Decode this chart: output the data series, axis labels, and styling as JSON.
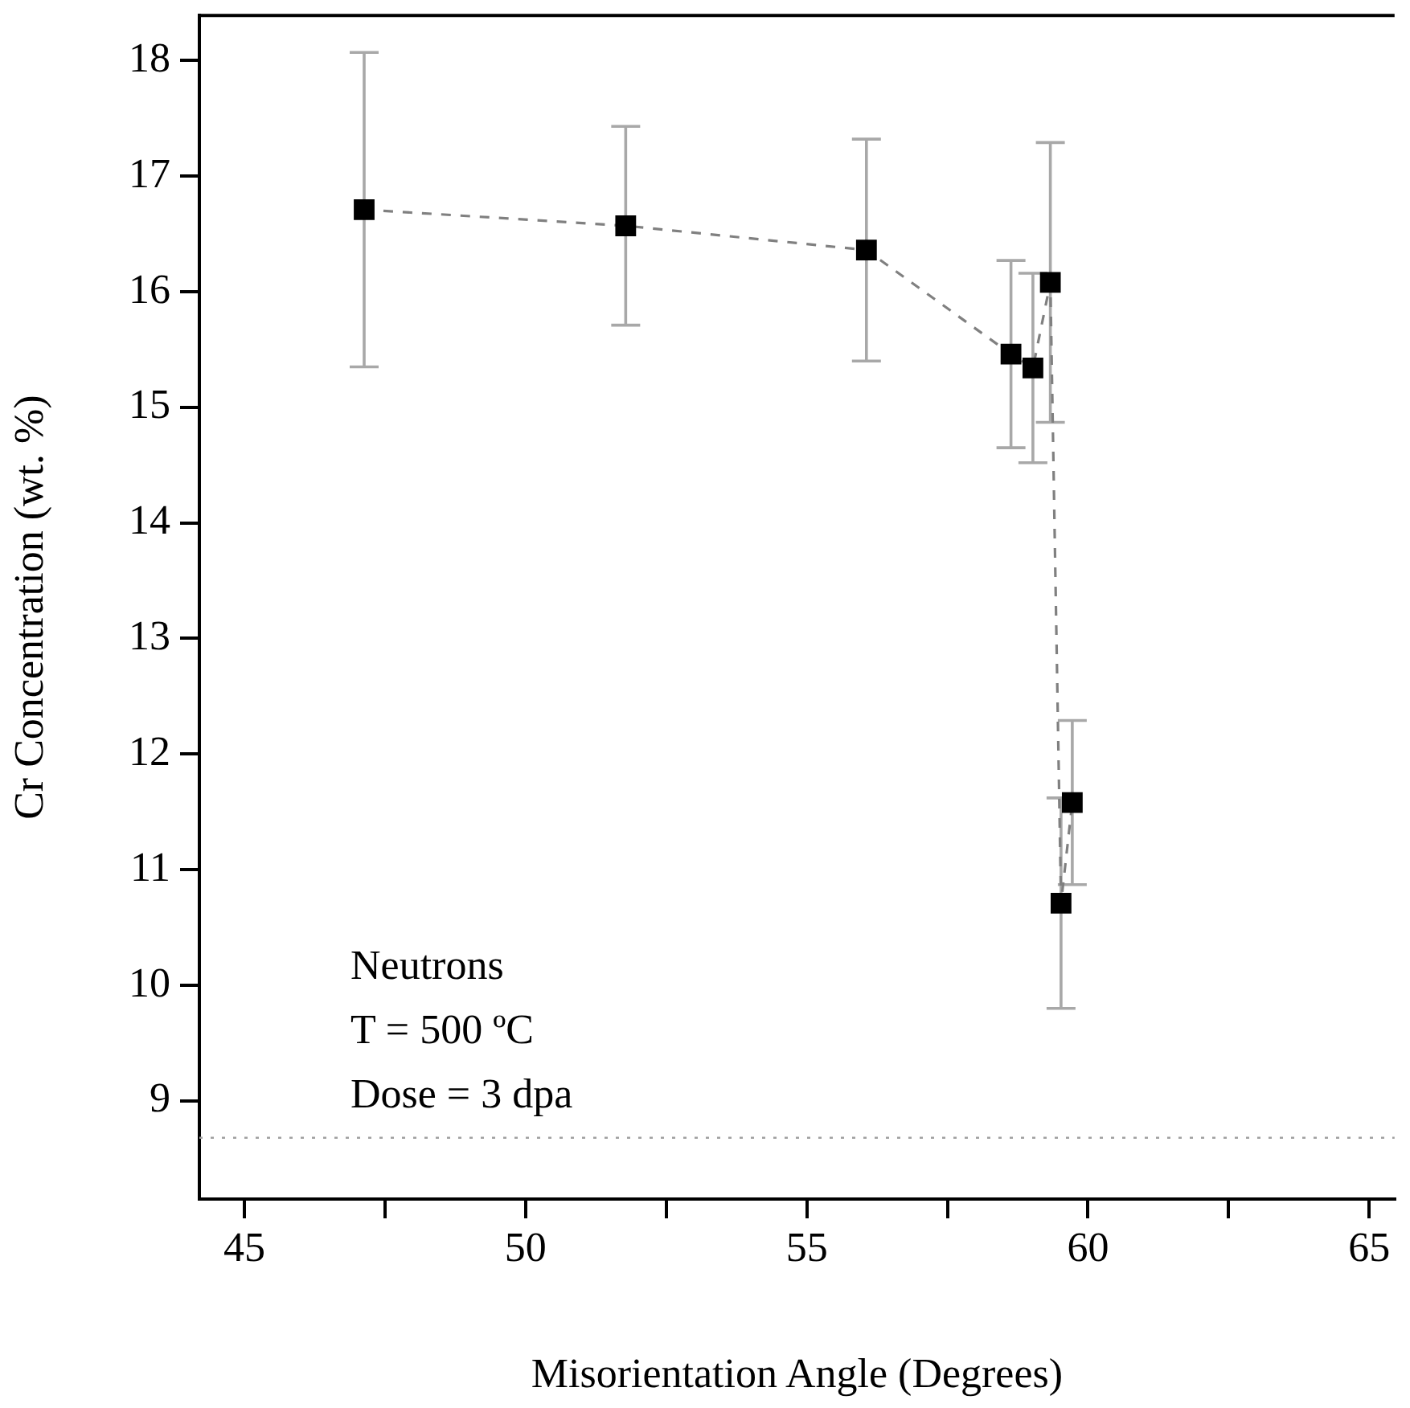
{
  "chart_data": {
    "type": "line",
    "xlabel": "Misorientation Angle (Degrees)",
    "ylabel": "Cr Concentration (wt. %)",
    "annotations": [
      "Neutrons",
      "T = 500 ºC",
      "Dose = 3 dpa"
    ],
    "x": [
      47.13,
      51.78,
      56.06,
      58.63,
      59.02,
      59.33,
      59.52,
      59.72
    ],
    "series": [
      {
        "color": "#000000",
        "values": [
          16.71,
          16.57,
          16.36,
          15.46,
          15.34,
          16.08,
          10.71,
          11.58
        ],
        "errors": [
          1.36,
          0.86,
          0.96,
          0.81,
          0.82,
          1.21,
          0.91,
          0.71
        ]
      }
    ],
    "xlim": [
      44.2,
      65.45
    ],
    "ylim": [
      8.15,
      18.39
    ],
    "xticks": [
      45,
      {
        "value": 47.5,
        "label": null
      },
      50,
      {
        "value": 52.5,
        "label": null
      },
      55,
      {
        "value": 57.5,
        "label": null
      },
      60,
      {
        "value": 62.5,
        "label": null
      },
      65
    ],
    "yticks": [
      9,
      10,
      11,
      12,
      13,
      14,
      15,
      16,
      17,
      18
    ],
    "ref_lines": [
      {
        "axis": "y",
        "value": 8.68,
        "color": "#a0a0a0",
        "line_style": "dotted"
      }
    ],
    "marker": "square",
    "line_style": "dashed",
    "grid": false,
    "legend": false
  }
}
